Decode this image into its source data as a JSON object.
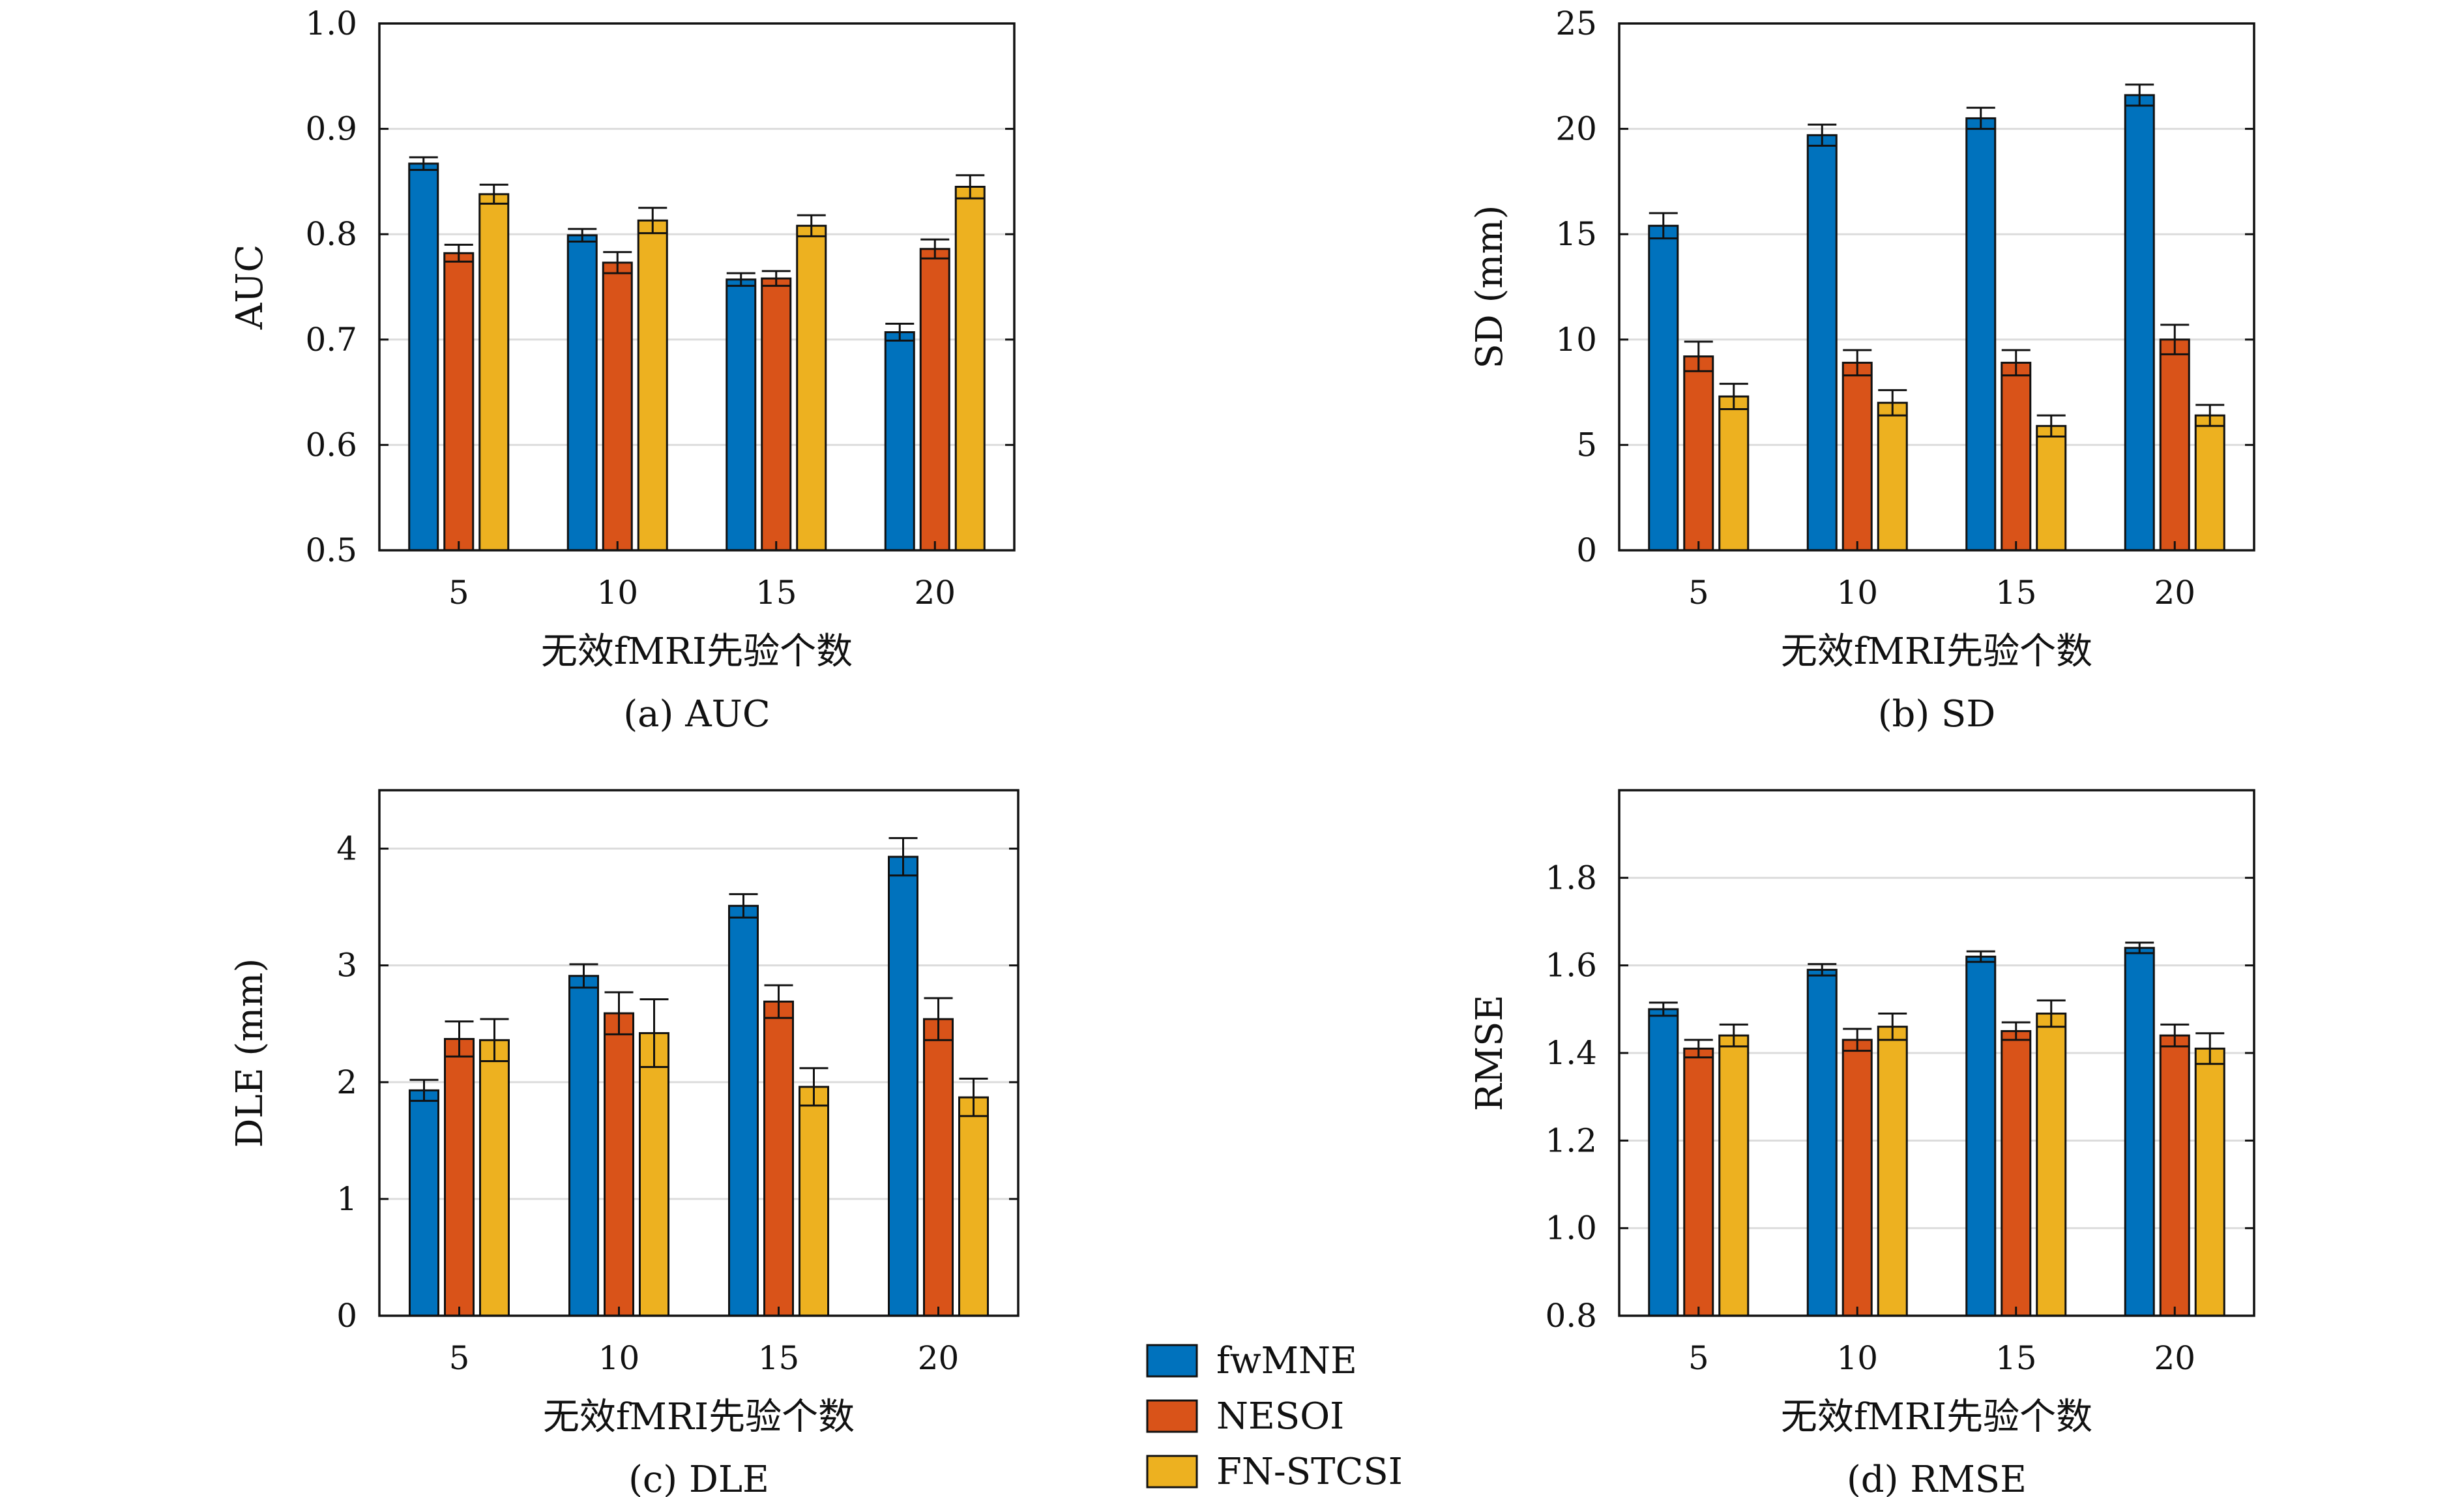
{
  "colors": {
    "fwMNE": "#0072BD",
    "NESOI": "#D95319",
    "FN-STCSI": "#EDB120",
    "grid": "#dcdcdc",
    "axis": "#111111"
  },
  "legend": {
    "entries": [
      "fwMNE",
      "NESOI",
      "FN-STCSI"
    ],
    "placement": "bottom-center"
  },
  "chart_data": [
    {
      "id": "a",
      "type": "bar",
      "caption": "(a) AUC",
      "xlabel": "无效fMRI先验个数",
      "ylabel": "AUC",
      "categories": [
        "5",
        "10",
        "15",
        "20"
      ],
      "ylim": [
        0.5,
        1.0
      ],
      "yticks": [
        "0.5",
        "0.6",
        "0.7",
        "0.8",
        "0.9",
        "1.0"
      ],
      "grid": true,
      "series": [
        {
          "name": "fwMNE",
          "values": [
            0.867,
            0.799,
            0.757,
            0.707
          ],
          "errors": [
            0.006,
            0.006,
            0.006,
            0.008
          ]
        },
        {
          "name": "NESOI",
          "values": [
            0.782,
            0.773,
            0.758,
            0.786
          ],
          "errors": [
            0.008,
            0.01,
            0.007,
            0.009
          ]
        },
        {
          "name": "FN-STCSI",
          "values": [
            0.838,
            0.813,
            0.808,
            0.845
          ],
          "errors": [
            0.009,
            0.012,
            0.01,
            0.011
          ]
        }
      ]
    },
    {
      "id": "b",
      "type": "bar",
      "caption": "(b) SD",
      "xlabel": "无效fMRI先验个数",
      "ylabel": "SD (mm)",
      "categories": [
        "5",
        "10",
        "15",
        "20"
      ],
      "ylim": [
        0,
        25
      ],
      "yticks": [
        "0",
        "5",
        "10",
        "15",
        "20",
        "25"
      ],
      "grid": true,
      "series": [
        {
          "name": "fwMNE",
          "values": [
            15.4,
            19.7,
            20.5,
            21.6
          ],
          "errors": [
            0.6,
            0.5,
            0.5,
            0.5
          ]
        },
        {
          "name": "NESOI",
          "values": [
            9.2,
            8.9,
            8.9,
            10.0
          ],
          "errors": [
            0.7,
            0.6,
            0.6,
            0.7
          ]
        },
        {
          "name": "FN-STCSI",
          "values": [
            7.3,
            7.0,
            5.9,
            6.4
          ],
          "errors": [
            0.6,
            0.6,
            0.5,
            0.5
          ]
        }
      ]
    },
    {
      "id": "c",
      "type": "bar",
      "caption": "(c) DLE",
      "xlabel": "无效fMRI先验个数",
      "ylabel": "DLE (mm)",
      "categories": [
        "5",
        "10",
        "15",
        "20"
      ],
      "ylim": [
        0,
        4.5
      ],
      "yticks": [
        "0",
        "1",
        "2",
        "3",
        "4"
      ],
      "ytick_values": [
        0,
        1,
        2,
        3,
        4
      ],
      "grid": true,
      "series": [
        {
          "name": "fwMNE",
          "values": [
            1.93,
            2.91,
            3.51,
            3.93
          ],
          "errors": [
            0.09,
            0.1,
            0.1,
            0.16
          ]
        },
        {
          "name": "NESOI",
          "values": [
            2.37,
            2.59,
            2.69,
            2.54
          ],
          "errors": [
            0.15,
            0.18,
            0.14,
            0.18
          ]
        },
        {
          "name": "FN-STCSI",
          "values": [
            2.36,
            2.42,
            1.96,
            1.87
          ],
          "errors": [
            0.18,
            0.29,
            0.16,
            0.16
          ]
        }
      ]
    },
    {
      "id": "d",
      "type": "bar",
      "caption": "(d) RMSE",
      "xlabel": "无效fMRI先验个数",
      "ylabel": "RMSE",
      "categories": [
        "5",
        "10",
        "15",
        "20"
      ],
      "ylim": [
        0.8,
        2.0
      ],
      "yticks": [
        "0.8",
        "1.0",
        "1.2",
        "1.4",
        "1.6",
        "1.8"
      ],
      "ytick_values": [
        0.8,
        1.0,
        1.2,
        1.4,
        1.6,
        1.8
      ],
      "grid": true,
      "series": [
        {
          "name": "fwMNE",
          "values": [
            1.5,
            1.59,
            1.62,
            1.64
          ],
          "errors": [
            0.015,
            0.013,
            0.012,
            0.012
          ]
        },
        {
          "name": "NESOI",
          "values": [
            1.41,
            1.43,
            1.45,
            1.44
          ],
          "errors": [
            0.02,
            0.025,
            0.02,
            0.025
          ]
        },
        {
          "name": "FN-STCSI",
          "values": [
            1.44,
            1.46,
            1.49,
            1.41
          ],
          "errors": [
            0.025,
            0.03,
            0.03,
            0.035
          ]
        }
      ]
    }
  ]
}
